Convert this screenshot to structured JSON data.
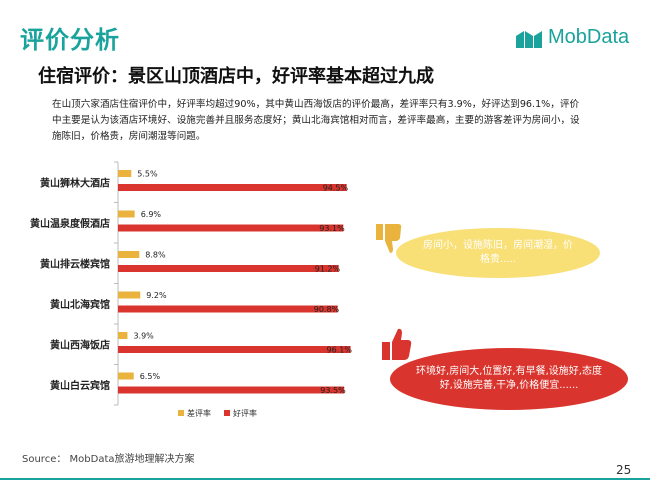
{
  "header": {
    "title": "评价分析",
    "logo_text": "MobData",
    "subtitle": "住宿评价：景区山顶酒店中，好评率基本超过九成"
  },
  "description": "在山顶六家酒店住宿评价中，好评率均超过90%，其中黄山西海饭店的评价最高，差评率只有3.9%，好评达到96.1%，评价中主要是认为该酒店环境好、设施完善并且服务态度好；黄山北海宾馆相对而言，差评率最高，主要的游客差评为房间小，设施陈旧，价格贵，房间潮湿等问题。",
  "callouts": {
    "negative": "房间小，设施陈旧，房间潮湿，价格贵.....",
    "positive": "环境好,房间大,位置好,有早餐,设施好,态度好,设施完善,干净,价格便宜......"
  },
  "footer": {
    "source": "Source： MobData旅游地理解决方案",
    "page": "25"
  },
  "colors": {
    "accent": "#1aa39c",
    "bad_rate": "#e9b33e",
    "good_rate": "#d9352e"
  },
  "chart_data": {
    "type": "bar",
    "orientation": "horizontal",
    "categories": [
      "黄山狮林大酒店",
      "黄山温泉度假酒店",
      "黄山排云楼宾馆",
      "黄山北海宾馆",
      "黄山西海饭店",
      "黄山白云宾馆"
    ],
    "series": [
      {
        "name": "差评率",
        "values": [
          5.5,
          6.9,
          8.8,
          9.2,
          3.9,
          6.5
        ],
        "labels": [
          "5.5%",
          "6.9%",
          "8.8%",
          "9.2%",
          "3.9%",
          "6.5%"
        ]
      },
      {
        "name": "好评率",
        "values": [
          94.5,
          93.1,
          91.2,
          90.8,
          96.1,
          93.5
        ],
        "labels": [
          "94.5%",
          "93.1%",
          "91.2%",
          "90.8%",
          "96.1%",
          "93.5%"
        ]
      }
    ],
    "xlim": [
      0,
      100
    ],
    "legend": "bottom",
    "grid": false
  }
}
